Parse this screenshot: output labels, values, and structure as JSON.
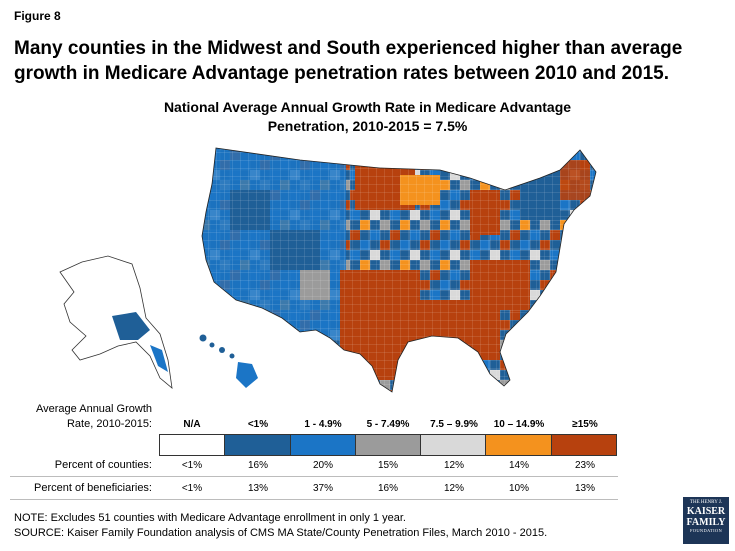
{
  "figure_label": "Figure 8",
  "headline": "Many counties in the Midwest and South experienced higher than average growth in Medicare Advantage penetration rates between 2010 and 2015.",
  "subtitle": {
    "line1": "National Average Annual Growth Rate in Medicare Advantage",
    "line2": "Penetration, 2010-2015 = 7.5%"
  },
  "colors": {
    "na": "#ffffff",
    "lt1": "#1f5f97",
    "1_4.9": "#1b75c6",
    "5_7.49": "#9b9b9b",
    "7.5_9.9": "#d9d9d9",
    "10_14.9": "#f4921e",
    "ge15": "#b7410e"
  },
  "legend": {
    "caption_line1": "Average Annual Growth",
    "caption_line2": "Rate, 2010-2015:",
    "categories": [
      {
        "label": "N/A",
        "color": "#ffffff"
      },
      {
        "label": "<1%",
        "color": "#1f5f97"
      },
      {
        "label": "1 - 4.9%",
        "color": "#1b75c6"
      },
      {
        "label": "5 - 7.49%",
        "color": "#9b9b9b"
      },
      {
        "label": "7.5 – 9.9%",
        "color": "#d9d9d9"
      },
      {
        "label": "10 – 14.9%",
        "color": "#f4921e"
      },
      {
        "label": "≥15%",
        "color": "#b7410e"
      }
    ]
  },
  "table": {
    "rows": [
      {
        "label": "Percent of counties:",
        "values": [
          "<1%",
          "16%",
          "20%",
          "15%",
          "12%",
          "14%",
          "23%"
        ]
      },
      {
        "label": "Percent of beneficiaries:",
        "values": [
          "<1%",
          "13%",
          "37%",
          "16%",
          "12%",
          "10%",
          "13%"
        ]
      }
    ]
  },
  "notes": {
    "note": "NOTE: Excludes 51 counties with Medicare Advantage enrollment in only 1 year.",
    "source": "SOURCE: Kaiser Family Foundation analysis of CMS MA State/County Penetration Files, March 2010 - 2015."
  },
  "logo": {
    "line1": "THE HENRY J.",
    "line2": "KAISER",
    "line3": "FAMILY",
    "line4": "FOUNDATION"
  }
}
